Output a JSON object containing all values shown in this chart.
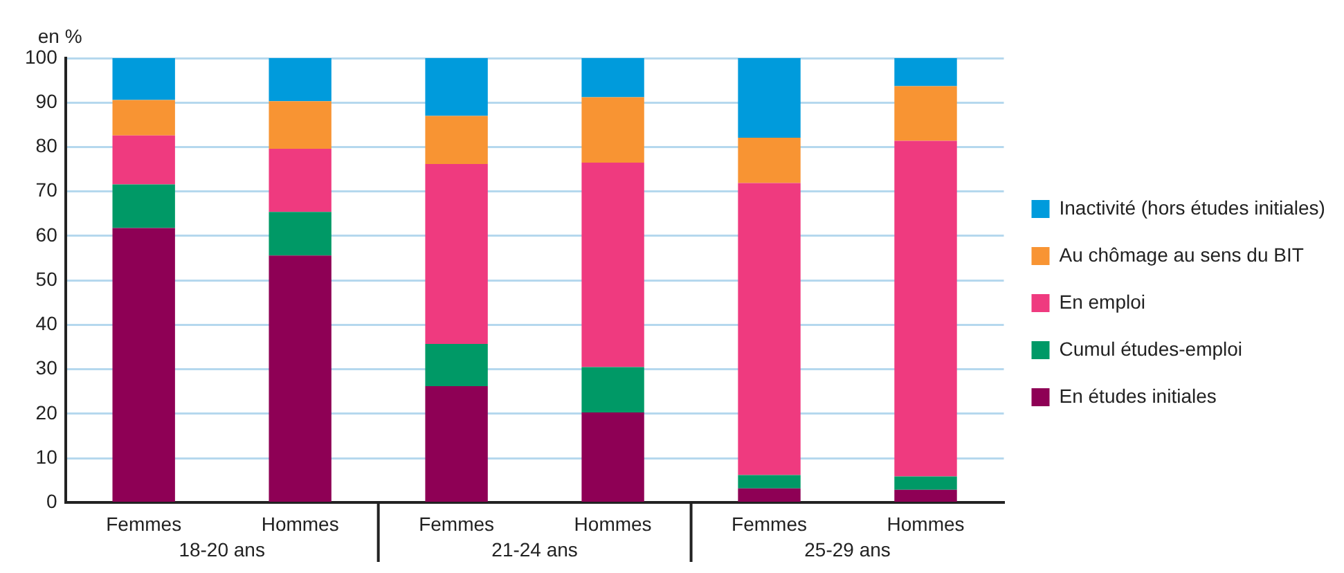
{
  "chart_data": {
    "type": "bar",
    "stacked": true,
    "ylabel": "en %",
    "categories": [
      "Femmes",
      "Hommes",
      "Femmes",
      "Hommes",
      "Femmes",
      "Hommes"
    ],
    "series": [
      {
        "name": "En études initiales",
        "color": "#8e0055",
        "values": [
          61.8,
          55.6,
          26.2,
          20.3,
          3.2,
          2.9
        ]
      },
      {
        "name": "Cumul études-emploi",
        "color": "#009966",
        "values": [
          9.8,
          9.8,
          9.5,
          10.2,
          3.0,
          3.0
        ]
      },
      {
        "name": "En emploi",
        "color": "#ef3a7f",
        "values": [
          11.0,
          14.2,
          40.5,
          46.0,
          65.7,
          75.5
        ]
      },
      {
        "name": "Au chômage au sens du BIT",
        "color": "#f89433",
        "values": [
          8.0,
          10.7,
          10.8,
          14.7,
          10.2,
          12.3
        ]
      },
      {
        "name": "Inactivité (hors études initiales)",
        "color": "#009bdc",
        "values": [
          9.4,
          9.7,
          13.0,
          8.8,
          17.9,
          6.3
        ]
      }
    ],
    "annotations": [
      "18-20 ans",
      "21-24 ans",
      "25-29 ans"
    ],
    "ylim": [
      0,
      100
    ],
    "yticks": [
      0,
      10,
      20,
      30,
      40,
      50,
      60,
      70,
      80,
      90,
      100
    ],
    "grid": "y",
    "legend": "right"
  }
}
